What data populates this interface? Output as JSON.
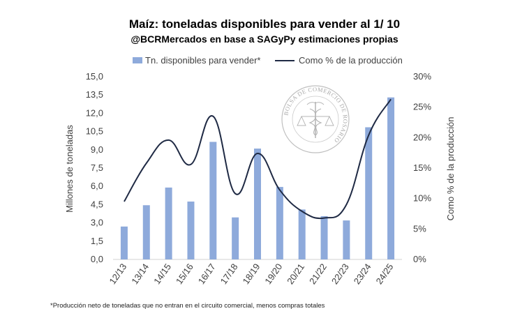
{
  "chart_data": {
    "type": "bar+line",
    "title": "Maíz: toneladas disponibles para vender al 1/ 10",
    "subtitle": "@BCRMercados en base a SAGyPy estimaciones propias",
    "categories": [
      "12/13",
      "13/14",
      "14/15",
      "15/16",
      "16/17",
      "17/18",
      "18/19",
      "19/20",
      "20/21",
      "21/22",
      "22/23",
      "23/24",
      "24/25"
    ],
    "series": [
      {
        "name": "Tn. disponibles para vender*",
        "type": "bar",
        "axis": "left",
        "color": "#8eaadb",
        "values": [
          2.7,
          4.45,
          5.9,
          4.75,
          9.65,
          3.45,
          9.1,
          5.95,
          4.1,
          3.55,
          3.2,
          10.85,
          13.3
        ]
      },
      {
        "name": "Como % de la producción",
        "type": "line",
        "axis": "right",
        "color": "#1f2a44",
        "values": [
          9.5,
          15.8,
          19.6,
          15.6,
          23.5,
          10.8,
          17.4,
          11.4,
          7.9,
          6.8,
          9.0,
          20.4,
          26.3
        ]
      }
    ],
    "ylabel_left": "Millones de toneladas",
    "ylabel_right": "Como % de la producción",
    "ylim_left": [
      0,
      15
    ],
    "ylim_right": [
      0,
      30
    ],
    "yticks_left": [
      "0,0",
      "1,5",
      "3,0",
      "4,5",
      "6,0",
      "7,5",
      "9,0",
      "10,5",
      "12,0",
      "13,5",
      "15,0"
    ],
    "yticks_right": [
      "0%",
      "5%",
      "10%",
      "15%",
      "20%",
      "25%",
      "30%"
    ],
    "grid": false,
    "legend_position": "top"
  },
  "footnote": "*Producción neto de toneladas que no entran en el circuito comercial, menos compras totales",
  "watermark": {
    "text": "BOLSA DE COMERCIO DE ROSARIO",
    "icon": "caduceus-seal-icon"
  }
}
